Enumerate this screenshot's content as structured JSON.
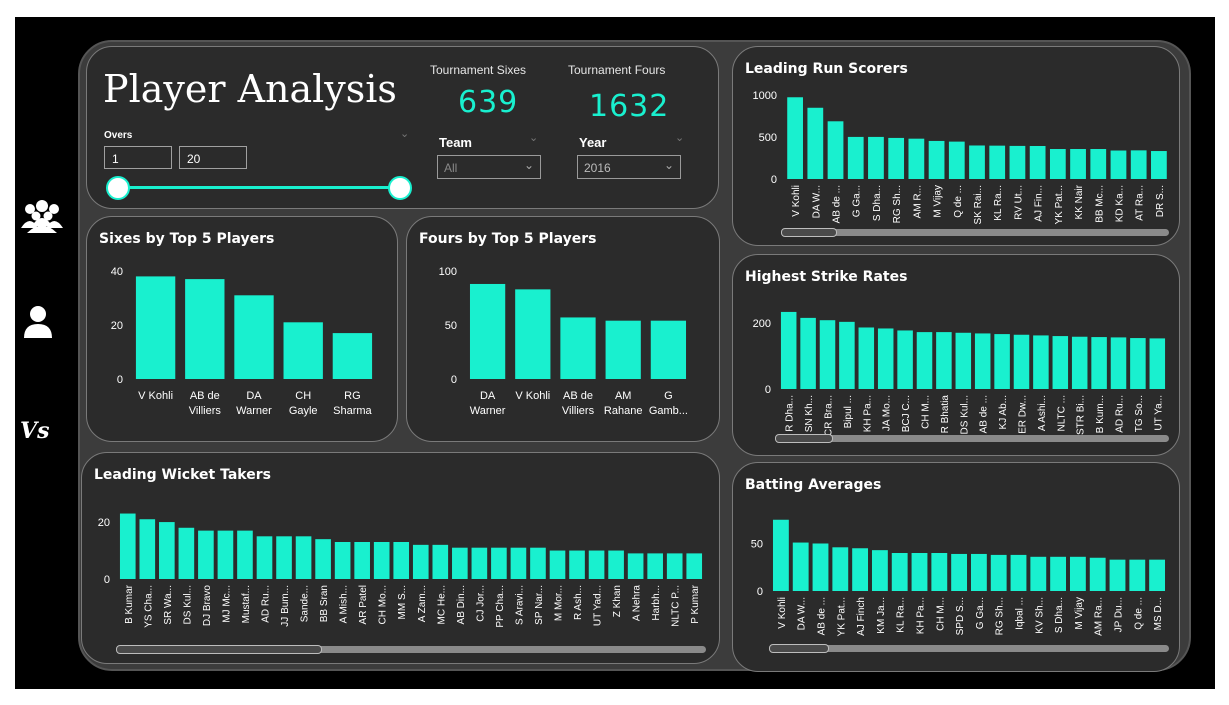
{
  "header": {
    "title": "Player Analysis",
    "overs_label": "Overs",
    "overs_min": "1",
    "overs_max": "20",
    "kpi_sixes_label": "Tournament Sixes",
    "kpi_sixes_value": "639",
    "kpi_fours_label": "Tournament Fours",
    "kpi_fours_value": "1632",
    "team_label": "Team",
    "team_value": "All",
    "year_label": "Year",
    "year_value": "2016"
  },
  "nav": {
    "vs_label": "Vs"
  },
  "colors": {
    "bar": "#19f0cf",
    "card": "#2b2b2b",
    "board": "#3c3c3c"
  },
  "chart_data": [
    {
      "id": "sixes",
      "type": "bar",
      "title": "Sixes by Top 5 Players",
      "categories": [
        "V Kohli",
        "AB de Villiers",
        "DA Warner",
        "CH Gayle",
        "RG Sharma"
      ],
      "tick_lines": [
        [
          "V Kohli"
        ],
        [
          "AB de",
          "Villiers"
        ],
        [
          "DA",
          "Warner"
        ],
        [
          "CH",
          "Gayle"
        ],
        [
          "RG",
          "Sharma"
        ]
      ],
      "values": [
        38,
        37,
        31,
        21,
        17
      ],
      "yticks": [
        0,
        20,
        40
      ],
      "ylim": [
        0,
        40
      ]
    },
    {
      "id": "fours",
      "type": "bar",
      "title": "Fours by Top 5 Players",
      "categories": [
        "DA Warner",
        "V Kohli",
        "AB de Villiers",
        "AM Rahane",
        "G Gamb..."
      ],
      "tick_lines": [
        [
          "DA",
          "Warner"
        ],
        [
          "V Kohli"
        ],
        [
          "AB de",
          "Villiers"
        ],
        [
          "AM",
          "Rahane"
        ],
        [
          "G",
          "Gamb..."
        ]
      ],
      "values": [
        88,
        83,
        57,
        54,
        54
      ],
      "yticks": [
        0,
        50,
        100
      ],
      "ylim": [
        0,
        100
      ]
    },
    {
      "id": "runs",
      "type": "bar",
      "title": "Leading Run Scorers",
      "categories": [
        "V Kohli",
        "DA W...",
        "AB de ...",
        "G Ga...",
        "S Dha...",
        "RG Sh...",
        "AM R...",
        "M Vijay",
        "Q de ...",
        "SK Rai...",
        "KL Ra...",
        "RV Ut...",
        "AJ Fin...",
        "YK Pat...",
        "KK Nair",
        "BB Mc...",
        "KD Ka...",
        "AT Ra...",
        "DR S..."
      ],
      "values": [
        973,
        848,
        687,
        501,
        501,
        489,
        480,
        453,
        445,
        399,
        397,
        394,
        393,
        357,
        357,
        357,
        339,
        341,
        333
      ],
      "yticks": [
        0,
        500,
        1000
      ],
      "ylim": [
        0,
        1000
      ]
    },
    {
      "id": "strike",
      "type": "bar",
      "title": "Highest Strike Rates",
      "categories": [
        "R Dha...",
        "SN Kh...",
        "CR Bra...",
        "Bipul ...",
        "KH Pa...",
        "JA Mo...",
        "BCJ C...",
        "CH M...",
        "R Bhatia",
        "DS Kul...",
        "AB de ...",
        "KJ Ab...",
        "ER Dw...",
        "A Ashi...",
        "NLTC ...",
        "STR Bi...",
        "B Kum...",
        "AD Ru...",
        "TG So...",
        "UT Ya..."
      ],
      "values": [
        233,
        215,
        208,
        203,
        186,
        183,
        177,
        172,
        172,
        170,
        168,
        166,
        164,
        162,
        160,
        158,
        157,
        156,
        154,
        153
      ],
      "yticks": [
        0,
        200
      ],
      "ylim": [
        0,
        260
      ]
    },
    {
      "id": "wickets",
      "type": "bar",
      "title": "Leading Wicket Takers",
      "categories": [
        "B Kumar",
        "YS Cha...",
        "SR Wa...",
        "DS Kul...",
        "DJ Bravo",
        "MJ Mc...",
        "Mustaf...",
        "AD Ru...",
        "JJ Bum...",
        "Sande...",
        "BB Sran",
        "A Mish...",
        "AR Patel",
        "CH Mo...",
        "MM S...",
        "A Zam...",
        "MC He...",
        "AB Din...",
        "CJ Jor...",
        "PP Cha...",
        "S Aravi...",
        "SP Nar...",
        "M Mor...",
        "R Ash...",
        "UT Yad...",
        "Z Khan",
        "A Nehra",
        "Harbh...",
        "NLTC P...",
        "P Kumar"
      ],
      "values": [
        23,
        21,
        20,
        18,
        17,
        17,
        17,
        15,
        15,
        15,
        14,
        13,
        13,
        13,
        13,
        12,
        12,
        11,
        11,
        11,
        11,
        11,
        10,
        10,
        10,
        10,
        9,
        9,
        9,
        9
      ],
      "yticks": [
        0,
        20
      ],
      "ylim": [
        0,
        26
      ]
    },
    {
      "id": "averages",
      "type": "bar",
      "title": "Batting Averages",
      "categories": [
        "V Kohli",
        "DA W...",
        "AB de ...",
        "YK Pat...",
        "AJ Finch",
        "KM Ja...",
        "KL Ra...",
        "KH Pa...",
        "CH M...",
        "SPD S...",
        "G Ga...",
        "RG Sh...",
        "Iqbal ...",
        "KV Sh...",
        "S Dha...",
        "M Vijay",
        "AM Ra...",
        "JP Du...",
        "Q de ...",
        "MS D..."
      ],
      "values": [
        75,
        51,
        50,
        46,
        45,
        43,
        40,
        40,
        40,
        39,
        39,
        38,
        38,
        36,
        36,
        36,
        35,
        33,
        33,
        33
      ],
      "yticks": [
        0,
        50
      ],
      "ylim": [
        0,
        80
      ]
    }
  ]
}
